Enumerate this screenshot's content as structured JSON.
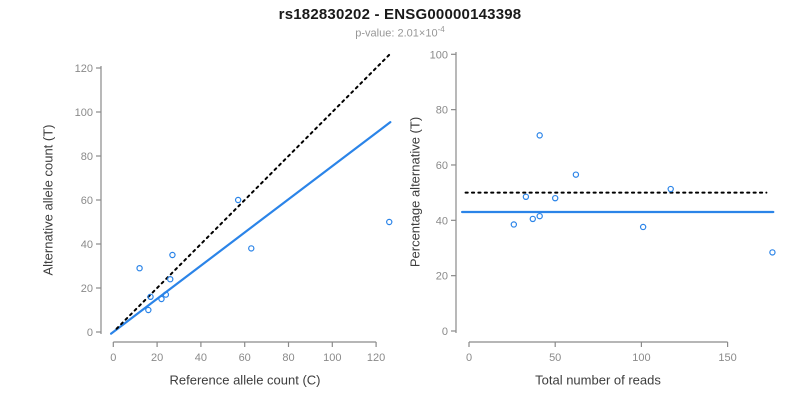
{
  "title": "rs182830202 - ENSG00000143398",
  "subtitle": {
    "label": "p-value:",
    "mantissa": "2.01",
    "times_base": "×10",
    "exponent": "-4"
  },
  "colors": {
    "accent_blue": "#2b84e8",
    "identity_black": "#000000",
    "axis_gray": "#8a8a8a",
    "tick_label_gray": "#8a8a8a",
    "axis_title_gray": "#3d3d3d",
    "title_black": "#1a1a1a",
    "subtitle_gray": "#979797"
  },
  "chart_data": [
    {
      "type": "scatter",
      "panel": "left",
      "xlabel": "Reference allele count (C)",
      "ylabel": "Alternative allele count (T)",
      "xticks": [
        0,
        20,
        40,
        60,
        80,
        100,
        120
      ],
      "yticks": [
        0,
        20,
        40,
        60,
        80,
        100,
        120
      ],
      "xlim": [
        0,
        126
      ],
      "ylim": [
        0,
        126
      ],
      "grid": false,
      "points": [
        [
          16,
          10
        ],
        [
          17,
          16
        ],
        [
          22,
          15
        ],
        [
          24,
          17
        ],
        [
          12,
          29
        ],
        [
          26,
          24
        ],
        [
          27,
          35
        ],
        [
          63,
          38
        ],
        [
          57,
          60
        ],
        [
          126,
          50
        ]
      ],
      "lines": [
        {
          "name": "fitted-ratio-line",
          "style": "solid",
          "color": "#2b84e8",
          "slope": 0.754,
          "intercept": 0
        },
        {
          "name": "identity-line",
          "style": "dotted",
          "color": "#000000",
          "slope": 1,
          "intercept": 0
        }
      ]
    },
    {
      "type": "scatter",
      "panel": "right",
      "xlabel": "Total number of reads",
      "ylabel": "Percentage alternative (T)",
      "xticks": [
        0,
        50,
        100,
        150
      ],
      "yticks": [
        0,
        20,
        40,
        60,
        80,
        100
      ],
      "xlim": [
        0,
        183
      ],
      "ylim": [
        0,
        100
      ],
      "grid": false,
      "points": [
        [
          26,
          38.5
        ],
        [
          33,
          48.5
        ],
        [
          37,
          40.5
        ],
        [
          41,
          41.5
        ],
        [
          41,
          70.7
        ],
        [
          50,
          48.0
        ],
        [
          62,
          56.5
        ],
        [
          101,
          37.6
        ],
        [
          117,
          51.3
        ],
        [
          176,
          28.4
        ]
      ],
      "lines": [
        {
          "name": "mean-percentage-line",
          "style": "solid",
          "color": "#2b84e8",
          "y": 43
        },
        {
          "name": "fifty-percent-line",
          "style": "dotted",
          "color": "#000000",
          "y": 50
        }
      ]
    }
  ]
}
